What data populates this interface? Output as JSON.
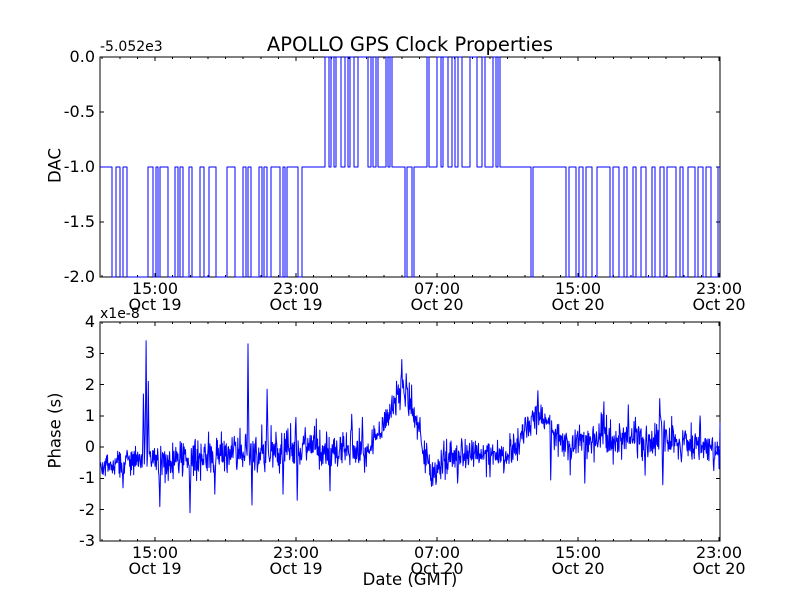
{
  "figure": {
    "title": "APOLLO GPS Clock Properties",
    "background": "#ffffff",
    "line_color": "#0000ff",
    "axis_color": "#000000",
    "top": {
      "ylabel": "DAC",
      "offset_text": "-5.052e3"
    },
    "bottom": {
      "ylabel": "Phase (s)",
      "multiplier_text": "x1e-8",
      "xlabel": "Date (GMT)"
    }
  },
  "chart_data": [
    {
      "type": "line",
      "subplot": "top",
      "title": "APOLLO GPS Clock Properties",
      "ylabel": "DAC",
      "y_offset_text": "-5.052e3",
      "ylim": [
        -2.0,
        0.0
      ],
      "ytick_labels": [
        "0.0",
        "-0.5",
        "-1.0",
        "-1.5",
        "-2.0"
      ],
      "ytick_values": [
        0.0,
        -0.5,
        -1.0,
        -1.5,
        -2.0
      ],
      "x_range_note": "fraction of axis, ~11:53 Oct 19 to ~23:03 Oct 20 GMT",
      "xticks": [
        {
          "f": 0.08871,
          "time": "15:00",
          "date": "Oct 19"
        },
        {
          "f": 0.31613,
          "time": "23:00",
          "date": "Oct 19"
        },
        {
          "f": 0.54355,
          "time": "07:00",
          "date": "Oct 20"
        },
        {
          "f": 0.77097,
          "time": "15:00",
          "date": "Oct 20"
        },
        {
          "f": 0.99839,
          "time": "23:00",
          "date": "Oct 20"
        }
      ],
      "minor_ticks_per_major": 8,
      "line_style": "steps",
      "steps": [
        [
          0.0,
          -1
        ],
        [
          0.0194,
          -2
        ],
        [
          0.0258,
          -1
        ],
        [
          0.0323,
          -2
        ],
        [
          0.0371,
          -1
        ],
        [
          0.0435,
          -2
        ],
        [
          0.0774,
          -1
        ],
        [
          0.0855,
          -2
        ],
        [
          0.0903,
          -1
        ],
        [
          0.0935,
          -2
        ],
        [
          0.0968,
          -1
        ],
        [
          0.1097,
          -2
        ],
        [
          0.121,
          -1
        ],
        [
          0.1258,
          -2
        ],
        [
          0.129,
          -1
        ],
        [
          0.1339,
          -2
        ],
        [
          0.1435,
          -1
        ],
        [
          0.1484,
          -2
        ],
        [
          0.1613,
          -1
        ],
        [
          0.1677,
          -2
        ],
        [
          0.1758,
          -1
        ],
        [
          0.1871,
          -2
        ],
        [
          0.2048,
          -1
        ],
        [
          0.2177,
          -2
        ],
        [
          0.2306,
          -1
        ],
        [
          0.2355,
          -2
        ],
        [
          0.2387,
          -1
        ],
        [
          0.2435,
          -2
        ],
        [
          0.2565,
          -1
        ],
        [
          0.2613,
          -2
        ],
        [
          0.2645,
          -1
        ],
        [
          0.2694,
          -2
        ],
        [
          0.2758,
          -1
        ],
        [
          0.2903,
          -2
        ],
        [
          0.2952,
          -1
        ],
        [
          0.2984,
          -2
        ],
        [
          0.3016,
          -1
        ],
        [
          0.3194,
          -2
        ],
        [
          0.3258,
          -1
        ],
        [
          0.3629,
          0
        ],
        [
          0.3694,
          -1
        ],
        [
          0.3726,
          0
        ],
        [
          0.3774,
          -1
        ],
        [
          0.3806,
          0
        ],
        [
          0.3887,
          -1
        ],
        [
          0.3952,
          0
        ],
        [
          0.4,
          -1
        ],
        [
          0.4032,
          0
        ],
        [
          0.4097,
          -1
        ],
        [
          0.4161,
          0
        ],
        [
          0.4323,
          -1
        ],
        [
          0.4371,
          0
        ],
        [
          0.4403,
          -1
        ],
        [
          0.4452,
          0
        ],
        [
          0.4484,
          -1
        ],
        [
          0.4613,
          0
        ],
        [
          0.4645,
          -1
        ],
        [
          0.4677,
          0
        ],
        [
          0.471,
          -1
        ],
        [
          0.4919,
          -2
        ],
        [
          0.4952,
          -1
        ],
        [
          0.5032,
          -2
        ],
        [
          0.5065,
          -1
        ],
        [
          0.5274,
          0
        ],
        [
          0.5306,
          -1
        ],
        [
          0.5435,
          0
        ],
        [
          0.55,
          -1
        ],
        [
          0.5532,
          0
        ],
        [
          0.5613,
          -1
        ],
        [
          0.5677,
          0
        ],
        [
          0.5726,
          -1
        ],
        [
          0.5774,
          0
        ],
        [
          0.5839,
          -1
        ],
        [
          0.5968,
          0
        ],
        [
          0.6081,
          -1
        ],
        [
          0.6161,
          0
        ],
        [
          0.621,
          -1
        ],
        [
          0.6339,
          0
        ],
        [
          0.6387,
          -1
        ],
        [
          0.6419,
          0
        ],
        [
          0.6452,
          -1
        ],
        [
          0.6952,
          -2
        ],
        [
          0.6984,
          -1
        ],
        [
          0.7516,
          -2
        ],
        [
          0.7565,
          -1
        ],
        [
          0.7677,
          -2
        ],
        [
          0.7726,
          -1
        ],
        [
          0.779,
          -2
        ],
        [
          0.7839,
          -1
        ],
        [
          0.7935,
          -2
        ],
        [
          0.8016,
          -1
        ],
        [
          0.8226,
          -2
        ],
        [
          0.8274,
          -1
        ],
        [
          0.8371,
          -2
        ],
        [
          0.8452,
          -1
        ],
        [
          0.85,
          -2
        ],
        [
          0.8597,
          -1
        ],
        [
          0.8645,
          -2
        ],
        [
          0.8726,
          -1
        ],
        [
          0.8806,
          -2
        ],
        [
          0.8903,
          -1
        ],
        [
          0.8952,
          -2
        ],
        [
          0.9032,
          -1
        ],
        [
          0.9097,
          -2
        ],
        [
          0.9145,
          -1
        ],
        [
          0.929,
          -2
        ],
        [
          0.9355,
          -1
        ],
        [
          0.9403,
          -2
        ],
        [
          0.9484,
          -1
        ],
        [
          0.9597,
          -2
        ],
        [
          0.9645,
          -1
        ],
        [
          0.9726,
          -2
        ],
        [
          0.9774,
          -1
        ],
        [
          0.9855,
          -2
        ],
        [
          0.9968,
          -1
        ]
      ]
    },
    {
      "type": "line",
      "subplot": "bottom",
      "ylabel": "Phase (s)",
      "y_multiplier_text": "x1e-8",
      "value_units": "1e-8 s",
      "ylim": [
        -3,
        4
      ],
      "ytick_labels": [
        "4",
        "3",
        "2",
        "1",
        "0",
        "-1",
        "-2",
        "-3"
      ],
      "ytick_values": [
        4,
        3,
        2,
        1,
        0,
        -1,
        -2,
        -3
      ],
      "xlabel": "Date (GMT)",
      "xticks": [
        {
          "f": 0.08871,
          "time": "15:00",
          "date": "Oct 19"
        },
        {
          "f": 0.31613,
          "time": "23:00",
          "date": "Oct 19"
        },
        {
          "f": 0.54355,
          "time": "07:00",
          "date": "Oct 20"
        },
        {
          "f": 0.77097,
          "time": "15:00",
          "date": "Oct 20"
        },
        {
          "f": 0.99839,
          "time": "23:00",
          "date": "Oct 20"
        }
      ],
      "minor_ticks_per_major": 8,
      "line_style": "noisy",
      "samples": 1400,
      "seed": 42,
      "baseline": [
        [
          0.0,
          -0.6
        ],
        [
          0.02,
          -0.55
        ],
        [
          0.04,
          -0.5
        ],
        [
          0.06,
          -0.4
        ],
        [
          0.075,
          -0.3
        ],
        [
          0.09,
          -0.45
        ],
        [
          0.11,
          -0.5
        ],
        [
          0.13,
          -0.35
        ],
        [
          0.145,
          -0.55
        ],
        [
          0.16,
          -0.3
        ],
        [
          0.175,
          -0.2
        ],
        [
          0.19,
          -0.25
        ],
        [
          0.21,
          -0.15
        ],
        [
          0.23,
          -0.1
        ],
        [
          0.245,
          -0.2
        ],
        [
          0.26,
          -0.1
        ],
        [
          0.275,
          -0.15
        ],
        [
          0.29,
          -0.05
        ],
        [
          0.305,
          0.0
        ],
        [
          0.32,
          0.05
        ],
        [
          0.335,
          0.1
        ],
        [
          0.35,
          0.0
        ],
        [
          0.365,
          -0.1
        ],
        [
          0.38,
          -0.15
        ],
        [
          0.4,
          -0.1
        ],
        [
          0.415,
          -0.2
        ],
        [
          0.43,
          -0.15
        ],
        [
          0.447,
          0.35
        ],
        [
          0.465,
          1.0
        ],
        [
          0.48,
          1.6
        ],
        [
          0.487,
          1.9
        ],
        [
          0.497,
          1.5
        ],
        [
          0.51,
          0.7
        ],
        [
          0.523,
          -0.2
        ],
        [
          0.535,
          -0.7
        ],
        [
          0.55,
          -0.5
        ],
        [
          0.565,
          -0.3
        ],
        [
          0.58,
          -0.25
        ],
        [
          0.6,
          -0.25
        ],
        [
          0.62,
          -0.18
        ],
        [
          0.64,
          -0.25
        ],
        [
          0.66,
          -0.15
        ],
        [
          0.675,
          0.1
        ],
        [
          0.69,
          0.6
        ],
        [
          0.7,
          0.95
        ],
        [
          0.715,
          1.0
        ],
        [
          0.728,
          0.6
        ],
        [
          0.74,
          0.2
        ],
        [
          0.755,
          0.05
        ],
        [
          0.77,
          0.2
        ],
        [
          0.8,
          0.3
        ],
        [
          0.83,
          0.25
        ],
        [
          0.86,
          0.3
        ],
        [
          0.88,
          0.2
        ],
        [
          0.9,
          0.3
        ],
        [
          0.92,
          0.2
        ],
        [
          0.94,
          0.15
        ],
        [
          0.96,
          0.2
        ],
        [
          0.98,
          0.05
        ],
        [
          1.0,
          -0.05
        ]
      ],
      "noise_sigma": [
        [
          0.0,
          0.18
        ],
        [
          0.05,
          0.22
        ],
        [
          0.1,
          0.28
        ],
        [
          0.15,
          0.3
        ],
        [
          0.2,
          0.3
        ],
        [
          0.25,
          0.32
        ],
        [
          0.3,
          0.3
        ],
        [
          0.36,
          0.32
        ],
        [
          0.42,
          0.28
        ],
        [
          0.46,
          0.22
        ],
        [
          0.5,
          0.28
        ],
        [
          0.53,
          0.3
        ],
        [
          0.56,
          0.25
        ],
        [
          0.62,
          0.22
        ],
        [
          0.66,
          0.25
        ],
        [
          0.7,
          0.22
        ],
        [
          0.74,
          0.25
        ],
        [
          0.78,
          0.28
        ],
        [
          0.82,
          0.3
        ],
        [
          0.86,
          0.28
        ],
        [
          0.9,
          0.3
        ],
        [
          0.95,
          0.28
        ],
        [
          1.0,
          0.25
        ]
      ],
      "spikes": [
        [
          0.037,
          -1.3
        ],
        [
          0.07,
          1.7
        ],
        [
          0.0742,
          3.4
        ],
        [
          0.078,
          2.1
        ],
        [
          0.0968,
          -1.9
        ],
        [
          0.145,
          -2.1
        ],
        [
          0.185,
          -1.5
        ],
        [
          0.2387,
          3.3
        ],
        [
          0.245,
          -1.85
        ],
        [
          0.2694,
          1.85
        ],
        [
          0.295,
          -1.5
        ],
        [
          0.316,
          0.95
        ],
        [
          0.318,
          -1.7
        ],
        [
          0.371,
          -1.4
        ],
        [
          0.406,
          1.05
        ],
        [
          0.423,
          0.95
        ],
        [
          0.487,
          2.8
        ],
        [
          0.494,
          2.35
        ],
        [
          0.516,
          0.95
        ],
        [
          0.535,
          -1.25
        ],
        [
          0.577,
          -1.15
        ],
        [
          0.629,
          -0.95
        ],
        [
          0.706,
          1.8
        ],
        [
          0.727,
          -1.05
        ],
        [
          0.782,
          -1.15
        ],
        [
          0.813,
          1.45
        ],
        [
          0.852,
          1.35
        ],
        [
          0.879,
          -0.9
        ],
        [
          0.903,
          1.55
        ],
        [
          0.908,
          -1.2
        ],
        [
          0.968,
          1.0
        ],
        [
          0.99,
          -0.75
        ]
      ]
    }
  ]
}
